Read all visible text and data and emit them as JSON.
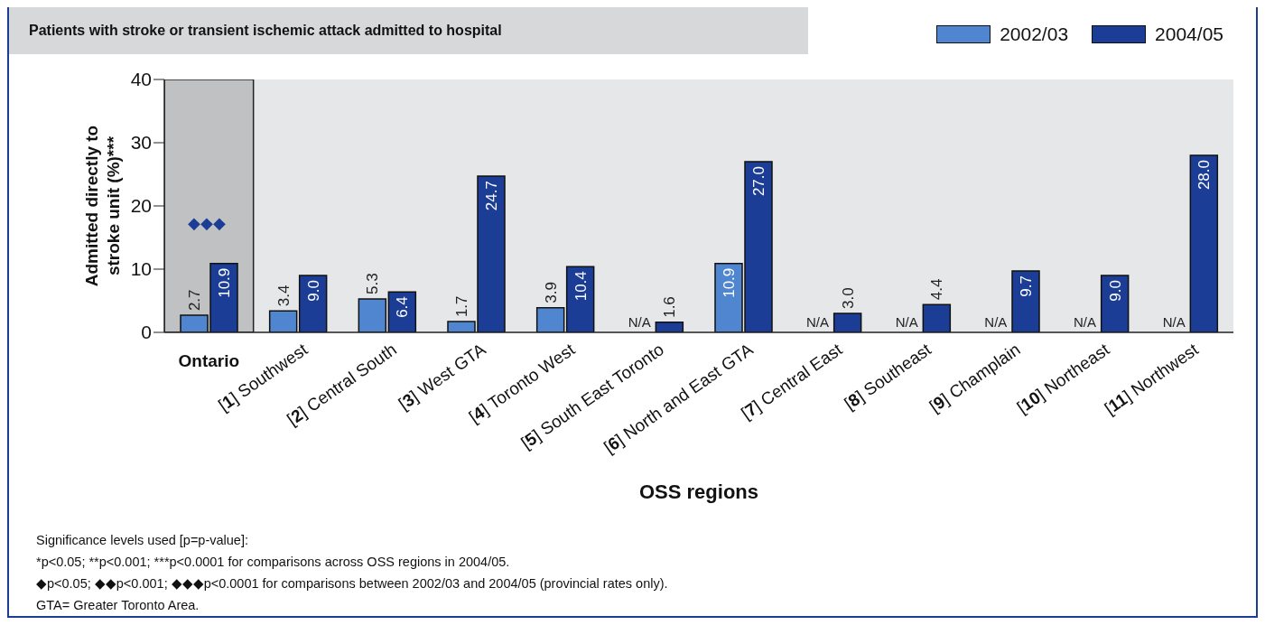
{
  "chart_data": {
    "type": "bar",
    "title": "Patients with stroke or transient ischemic attack admitted to hospital",
    "xlabel": "OSS regions",
    "ylabel": "Admitted directly to stroke unit (%)***",
    "categories": [
      "Ontario",
      "[1] Southwest",
      "[2] Central South",
      "[3] West GTA",
      "[4] Toronto West",
      "[5] South East Toronto",
      "[6] North and East GTA",
      "[7] Central East",
      "[8] Southeast",
      "[9] Champlain",
      "[10] Northeast",
      "[11] Northwest"
    ],
    "series": [
      {
        "name": "2002/03",
        "color": "#4f86cf",
        "values": [
          2.7,
          3.4,
          5.3,
          1.7,
          3.9,
          null,
          10.9,
          null,
          null,
          null,
          null,
          null
        ],
        "value_labels": [
          "2.7",
          "3.4",
          "5.3",
          "1.7",
          "3.9",
          "N/A",
          "10.9",
          "N/A",
          "N/A",
          "N/A",
          "N/A",
          "N/A"
        ]
      },
      {
        "name": "2004/05",
        "color": "#1c3d96",
        "values": [
          10.9,
          9.0,
          6.4,
          24.7,
          10.4,
          1.6,
          27.0,
          3.0,
          4.4,
          9.7,
          9.0,
          28.0
        ],
        "value_labels": [
          "10.9",
          "9.0",
          "6.4",
          "24.7",
          "10.4",
          "1.6",
          "27.0",
          "3.0",
          "4.4",
          "9.7",
          "9.0",
          "28.0"
        ]
      }
    ],
    "ylim": [
      0,
      40
    ],
    "yticks": [
      0,
      10,
      20,
      30,
      40
    ],
    "legend": "top right",
    "bands": [
      {
        "axis": "x",
        "from": "Ontario",
        "to": "Ontario",
        "color": "#c0c1c3"
      }
    ],
    "annotations": [
      "◆◆◆",
      "Significance levels used [p=p-value]:",
      "*p<0.05; **p<0.001; ***p<0.0001 for comparisons across OSS regions in 2004/05.",
      "◆p<0.05; ◆◆p<0.001; ◆◆◆p<0.0001 for comparisons between 2002/03 and 2004/05 (provincial rates only).",
      "GTA= Greater Toronto Area."
    ]
  }
}
